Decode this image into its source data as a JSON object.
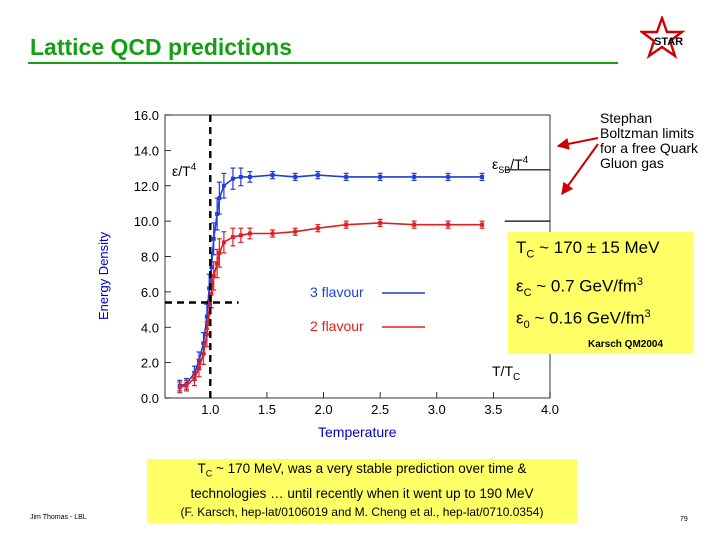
{
  "slide": {
    "title": "Lattice QCD predictions",
    "logo_text": "STAR",
    "author": "Jim Thomas - LBL",
    "page_number": "79",
    "y_axis_caption": "Energy Density",
    "x_axis_caption": "Temperature",
    "stefan_note": "Stephan Boltzman limits for a free Quark Gluon gas",
    "tc_line": "T",
    "tc_sub": "C",
    "tc_value": " ~ 170 ± 15 MeV",
    "ec_sym": "ε",
    "ec_sub": "C",
    "ec_value": " ~ 0.7 GeV/fm",
    "ec_sup": "3",
    "e0_sym": "ε",
    "e0_sub": "0",
    "e0_value": " ~ 0.16 GeV/fm",
    "e0_sup": "3",
    "karsch_ref": "Karsch QM2004",
    "note_line1_t": "T",
    "note_line1_sub": "C",
    "note_line1_rest": " ~ 170 MeV, was a very stable prediction over time &",
    "note_line2": "technologies … until recently when it went up to 190 MeV",
    "note_line3": "(F. Karsch, hep-lat/0106019 and M. Cheng et al., hep-lat/0710.0354)"
  },
  "colors": {
    "title": "#14a014",
    "axis_caption": "#0000c8",
    "three_flavour": "#1f3fd6",
    "two_flavour": "#e02020",
    "highlight": "#ffff66",
    "arrow": "#cc0000"
  },
  "chart_data": {
    "type": "line",
    "title": "",
    "xlabel": "T/T",
    "xlabel_sub": "C",
    "ylabel": "ε/T",
    "ylabel_sup": "4",
    "sb_label": "ε",
    "sb_label_sub": "SB",
    "sb_label_rest": "/T",
    "sb_label_sup": "4",
    "xlim": [
      0.6,
      4.0
    ],
    "ylim": [
      0.0,
      16.0
    ],
    "xticks": [
      "1.0",
      "1.5",
      "2.0",
      "2.5",
      "3.0",
      "3.5",
      "4.0"
    ],
    "yticks": [
      "0.0",
      "2.0",
      "4.0",
      "6.0",
      "8.0",
      "10.0",
      "12.0",
      "14.0",
      "16.0"
    ],
    "tc_marker_x": 1.0,
    "e0_marker_y": 5.4,
    "series": [
      {
        "name": "3 flavour",
        "x": [
          0.73,
          0.79,
          0.86,
          0.9,
          0.94,
          0.97,
          0.99,
          1.01,
          1.03,
          1.06,
          1.08,
          1.12,
          1.2,
          1.27,
          1.35,
          1.55,
          1.75,
          1.95,
          2.2,
          2.5,
          2.8,
          3.1,
          3.4
        ],
        "y": [
          0.7,
          0.8,
          1.4,
          2.1,
          3.1,
          4.6,
          6.2,
          7.4,
          9.0,
          10.4,
          11.3,
          12.0,
          12.4,
          12.5,
          12.5,
          12.6,
          12.5,
          12.6,
          12.5,
          12.5,
          12.5,
          12.5,
          12.5
        ],
        "err": [
          0.3,
          0.3,
          0.4,
          0.5,
          0.6,
          0.7,
          0.8,
          0.8,
          0.9,
          0.9,
          0.9,
          0.7,
          0.6,
          0.5,
          0.3,
          0.2,
          0.2,
          0.2,
          0.2,
          0.2,
          0.2,
          0.2,
          0.2
        ],
        "sb_limit": 12.9
      },
      {
        "name": "2 flavour",
        "x": [
          0.73,
          0.79,
          0.86,
          0.9,
          0.94,
          0.97,
          0.99,
          1.01,
          1.03,
          1.06,
          1.08,
          1.12,
          1.2,
          1.27,
          1.35,
          1.55,
          1.75,
          1.95,
          2.2,
          2.5,
          2.8,
          3.1,
          3.4
        ],
        "y": [
          0.6,
          0.7,
          1.1,
          1.7,
          2.5,
          3.6,
          4.8,
          5.9,
          6.9,
          7.6,
          8.2,
          8.8,
          9.1,
          9.2,
          9.3,
          9.3,
          9.4,
          9.6,
          9.8,
          9.9,
          9.8,
          9.8,
          9.8
        ],
        "err": [
          0.3,
          0.3,
          0.4,
          0.5,
          0.6,
          0.7,
          0.7,
          0.8,
          0.8,
          0.8,
          0.8,
          0.6,
          0.5,
          0.4,
          0.3,
          0.2,
          0.2,
          0.2,
          0.2,
          0.2,
          0.2,
          0.2,
          0.2
        ],
        "sb_limit": 10.0
      }
    ],
    "annotations": [
      "3 flavour",
      "2 flavour",
      "ε_SB/T^4",
      "T/T_C",
      "ε/T^4"
    ]
  }
}
